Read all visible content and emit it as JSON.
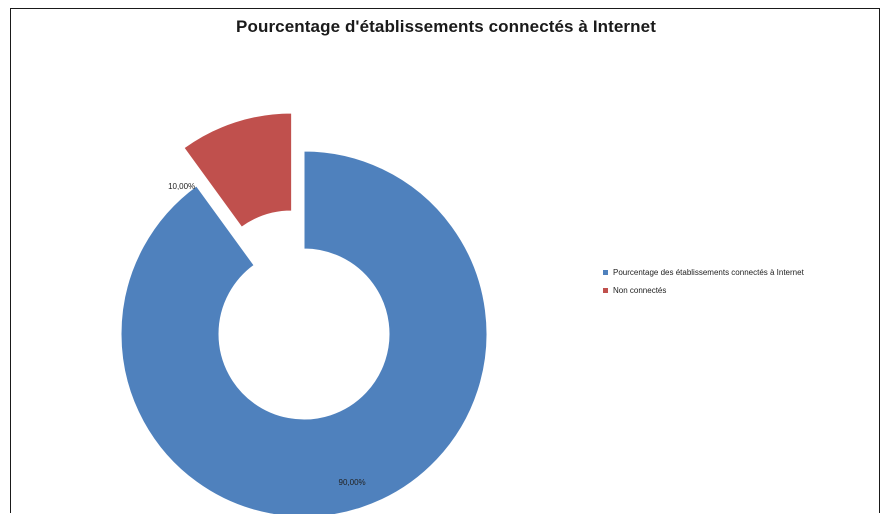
{
  "chart_data": {
    "type": "pie",
    "variant": "doughnut-exploded",
    "title": "Pourcentage d'établissements connectés à Internet",
    "categories": [
      "Pourcentage des établissements connectés à Internet",
      "Non connectés"
    ],
    "values": [
      90,
      10
    ],
    "data_labels": [
      "90,00%",
      "10,00%"
    ],
    "colors": [
      "#4f81bd",
      "#c0504d"
    ],
    "legend_position": "right"
  }
}
